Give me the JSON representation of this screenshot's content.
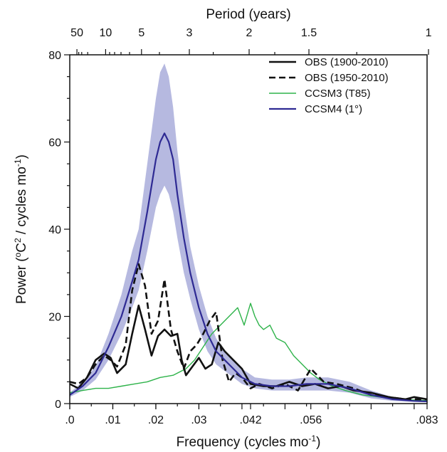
{
  "chart_data": {
    "type": "line",
    "xlabel": "Frequency (cycles mo",
    "xlabel_sup": "-1",
    "xlabel_end": ")",
    "ylabel": "Power (",
    "ylabel_deg": "o",
    "ylabel_c": "C",
    "ylabel_sq": "2",
    "ylabel_mid": " / cycles mo",
    "ylabel_sup": "-1",
    "ylabel_end": ")",
    "top_label": "Period (years)",
    "xlim": [
      0,
      0.083
    ],
    "ylim": [
      0,
      80
    ],
    "x_ticks": [
      {
        "value": 0,
        "label": ".0"
      },
      {
        "value": 0.01,
        "label": ".01"
      },
      {
        "value": 0.02,
        "label": ".02"
      },
      {
        "value": 0.03,
        "label": ".03"
      },
      {
        "value": 0.042,
        "label": ".042"
      },
      {
        "value": 0.056,
        "label": ".056"
      },
      {
        "value": 0.083,
        "label": ".083"
      }
    ],
    "y_ticks": [
      {
        "value": 0,
        "label": "0"
      },
      {
        "value": 20,
        "label": "20"
      },
      {
        "value": 40,
        "label": "40"
      },
      {
        "value": 60,
        "label": "60"
      },
      {
        "value": 80,
        "label": "80"
      }
    ],
    "top_ticks": [
      {
        "value": 50,
        "label": "50"
      },
      {
        "value": 10,
        "label": "10"
      },
      {
        "value": 5,
        "label": "5"
      },
      {
        "value": 3,
        "label": "3"
      },
      {
        "value": 2,
        "label": "2"
      },
      {
        "value": 1.5,
        "label": "1.5"
      },
      {
        "value": 1,
        "label": "1"
      }
    ],
    "legend_position": "top-right",
    "series": [
      {
        "name": "OBS (1900-2010)",
        "color": "#111111",
        "style": "solid",
        "x": [
          0.0,
          0.002,
          0.004,
          0.006,
          0.008,
          0.0095,
          0.011,
          0.013,
          0.0145,
          0.016,
          0.0175,
          0.019,
          0.0205,
          0.022,
          0.0235,
          0.025,
          0.026,
          0.027,
          0.0285,
          0.03,
          0.0315,
          0.033,
          0.0345,
          0.036,
          0.038,
          0.04,
          0.042,
          0.045,
          0.048,
          0.051,
          0.054,
          0.057,
          0.06,
          0.063,
          0.066,
          0.07,
          0.074,
          0.078,
          0.08,
          0.083
        ],
        "y": [
          4.5,
          3.5,
          6,
          10,
          11.5,
          10.5,
          7,
          9,
          16,
          22.5,
          17,
          11,
          15.5,
          17,
          15.5,
          16,
          10,
          6.5,
          8.5,
          10.5,
          8,
          9,
          14,
          12,
          10,
          8,
          4.5,
          4,
          4,
          5,
          4,
          4.5,
          3.5,
          4,
          3,
          2.5,
          1.5,
          1,
          1.5,
          1
        ]
      },
      {
        "name": "OBS (1950-2010)",
        "color": "#111111",
        "style": "dashed",
        "x": [
          0.0,
          0.002,
          0.004,
          0.006,
          0.008,
          0.0095,
          0.011,
          0.013,
          0.0145,
          0.016,
          0.0175,
          0.019,
          0.0205,
          0.022,
          0.0235,
          0.025,
          0.0265,
          0.028,
          0.0295,
          0.031,
          0.0325,
          0.034,
          0.0355,
          0.037,
          0.0385,
          0.04,
          0.042,
          0.044,
          0.047,
          0.05,
          0.053,
          0.056,
          0.057,
          0.059,
          0.062,
          0.066,
          0.07,
          0.074,
          0.078,
          0.083
        ],
        "y": [
          5,
          4.5,
          6,
          9,
          11,
          10,
          8.5,
          13.5,
          26,
          32,
          27,
          16,
          19,
          28.5,
          17,
          12,
          8,
          12,
          13.5,
          16,
          19,
          21,
          10,
          5,
          7,
          6,
          3.5,
          4.5,
          3.5,
          4.5,
          3,
          8,
          7,
          5,
          4.5,
          3.5,
          2,
          1.5,
          1,
          1
        ]
      },
      {
        "name": "CCSM3 (T85)",
        "color": "#2eb34a",
        "style": "solid",
        "x": [
          0.0,
          0.003,
          0.006,
          0.009,
          0.012,
          0.015,
          0.018,
          0.021,
          0.024,
          0.027,
          0.029,
          0.031,
          0.033,
          0.035,
          0.037,
          0.039,
          0.0405,
          0.042,
          0.043,
          0.044,
          0.045,
          0.0465,
          0.048,
          0.05,
          0.052,
          0.054,
          0.056,
          0.058,
          0.061,
          0.064,
          0.068,
          0.072,
          0.076,
          0.08,
          0.083
        ],
        "y": [
          2.5,
          3,
          3.5,
          3.5,
          4,
          4.5,
          5,
          6,
          6.5,
          8,
          10,
          13,
          16,
          18,
          20,
          22,
          18,
          23,
          20,
          18,
          17,
          18,
          15,
          14,
          11,
          9,
          7,
          5.5,
          4,
          3,
          2,
          1.5,
          1,
          0.8,
          0.7
        ]
      },
      {
        "name": "CCSM4 (1°)",
        "color": "#2e2a93",
        "style": "solid",
        "x": [
          0.0,
          0.003,
          0.006,
          0.009,
          0.012,
          0.0145,
          0.016,
          0.018,
          0.02,
          0.021,
          0.022,
          0.023,
          0.024,
          0.025,
          0.0265,
          0.028,
          0.03,
          0.032,
          0.034,
          0.036,
          0.038,
          0.04,
          0.043,
          0.047,
          0.051,
          0.055,
          0.06,
          0.065,
          0.07,
          0.075,
          0.08,
          0.083
        ],
        "y": [
          2,
          4,
          7,
          13,
          20,
          28,
          33,
          44,
          56,
          60,
          62,
          60,
          56,
          48,
          38,
          30,
          22,
          16,
          12,
          10,
          8,
          6,
          4.5,
          4,
          4,
          4.5,
          4.5,
          3.5,
          2,
          1,
          0.6,
          0.5
        ]
      }
    ],
    "band": {
      "name": "CCSM4 range",
      "color": "#b6b9e0",
      "x": [
        0.0,
        0.003,
        0.006,
        0.009,
        0.012,
        0.0145,
        0.016,
        0.018,
        0.02,
        0.021,
        0.022,
        0.023,
        0.024,
        0.025,
        0.0265,
        0.028,
        0.03,
        0.032,
        0.034,
        0.036,
        0.038,
        0.04,
        0.043,
        0.047,
        0.051,
        0.055,
        0.06,
        0.065,
        0.07,
        0.075,
        0.08,
        0.083
      ],
      "upper": [
        2.5,
        5,
        8.5,
        16,
        25,
        35,
        40,
        55,
        70,
        76,
        78,
        75,
        68,
        58,
        46,
        36,
        27,
        20,
        15,
        12,
        10,
        8,
        6,
        5.5,
        5.5,
        6,
        6,
        5,
        3,
        1.5,
        0.9,
        0.7
      ],
      "lower": [
        1.5,
        3,
        5.5,
        10,
        16,
        22,
        26,
        35,
        45,
        48,
        50,
        48,
        44,
        38,
        30,
        24,
        17,
        12,
        9,
        7.5,
        6,
        4.5,
        3.5,
        3,
        3,
        3,
        3,
        2.5,
        1.2,
        0.6,
        0.4,
        0.3
      ]
    }
  }
}
